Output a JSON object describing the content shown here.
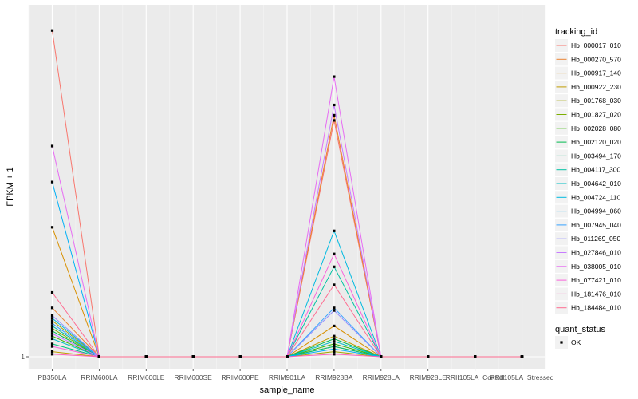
{
  "chart_data": {
    "type": "line",
    "xlabel": "sample_name",
    "ylabel": "FPKM + 1",
    "y_tick_labels": [
      "1"
    ],
    "ylim": [
      1,
      7.85
    ],
    "grid": true,
    "legend_placement": "right",
    "categories": [
      "PB350LA",
      "RRIM600LA",
      "RRIM600LE",
      "RRIM600SE",
      "RRIM600PE",
      "RRIM901LA",
      "RRIM928BA",
      "RRIM928LA",
      "RRIM928LE",
      "RRII105LA_Control",
      "RRII105LA_Stressed"
    ],
    "legend_title": "tracking_id",
    "shape_legend_title": "quant_status",
    "shape_legend_items": [
      "OK"
    ],
    "series": [
      {
        "name": "Hb_000017_010",
        "color": "#F8766D",
        "values": [
          7.35,
          1,
          1,
          1,
          1,
          1,
          5.6,
          1,
          1,
          1,
          1
        ]
      },
      {
        "name": "Hb_000270_570",
        "color": "#EA8331",
        "values": [
          1.95,
          1,
          1,
          1,
          1,
          1,
          5.7,
          1,
          1,
          1,
          1
        ]
      },
      {
        "name": "Hb_000917_140",
        "color": "#D89000",
        "values": [
          3.52,
          1,
          1,
          1,
          1,
          1,
          1.6,
          1,
          1,
          1,
          1
        ]
      },
      {
        "name": "Hb_000922_230",
        "color": "#C09B00",
        "values": [
          1.1,
          1,
          1,
          1,
          1,
          1,
          1.4,
          1,
          1,
          1,
          1
        ]
      },
      {
        "name": "Hb_001768_030",
        "color": "#A3A500",
        "values": [
          1.7,
          1,
          1,
          1,
          1,
          1,
          1.1,
          1,
          1,
          1,
          1
        ]
      },
      {
        "name": "Hb_001827_020",
        "color": "#7CAE00",
        "values": [
          1.55,
          1,
          1,
          1,
          1,
          1,
          1.2,
          1,
          1,
          1,
          1
        ]
      },
      {
        "name": "Hb_002028_080",
        "color": "#39B600",
        "values": [
          1.4,
          1,
          1,
          1,
          1,
          1,
          1.25,
          1,
          1,
          1,
          1
        ]
      },
      {
        "name": "Hb_002120_020",
        "color": "#00BB4E",
        "values": [
          1.5,
          1,
          1,
          1,
          1,
          1,
          1.35,
          1,
          1,
          1,
          1
        ]
      },
      {
        "name": "Hb_003494_170",
        "color": "#00BF7D",
        "values": [
          1.25,
          1,
          1,
          1,
          1,
          1,
          1.2,
          1,
          1,
          1,
          1
        ]
      },
      {
        "name": "Hb_004117_300",
        "color": "#00C1A3",
        "values": [
          1.6,
          1,
          1,
          1,
          1,
          1,
          2.75,
          1,
          1,
          1,
          1
        ]
      },
      {
        "name": "Hb_004642_010",
        "color": "#00BFC4",
        "values": [
          1.35,
          1,
          1,
          1,
          1,
          1,
          1.3,
          1,
          1,
          1,
          1
        ]
      },
      {
        "name": "Hb_004724_110",
        "color": "#00BAE0",
        "values": [
          1.75,
          1,
          1,
          1,
          1,
          1,
          3.45,
          1,
          1,
          1,
          1
        ]
      },
      {
        "name": "Hb_004994_060",
        "color": "#00B0F6",
        "values": [
          4.4,
          1,
          1,
          1,
          1,
          1,
          1.15,
          1,
          1,
          1,
          1
        ]
      },
      {
        "name": "Hb_007945_040",
        "color": "#35A2FF",
        "values": [
          1.65,
          1,
          1,
          1,
          1,
          1,
          1.95,
          1,
          1,
          1,
          1
        ]
      },
      {
        "name": "Hb_011269_050",
        "color": "#9590FF",
        "values": [
          1.8,
          1,
          1,
          1,
          1,
          1,
          1.9,
          1,
          1,
          1,
          1
        ]
      },
      {
        "name": "Hb_027846_010",
        "color": "#C77CFF",
        "values": [
          1.45,
          1,
          1,
          1,
          1,
          1,
          5.9,
          1,
          1,
          1,
          1
        ]
      },
      {
        "name": "Hb_038005_010",
        "color": "#E76BF3",
        "values": [
          5.1,
          1,
          1,
          1,
          1,
          1,
          6.45,
          1,
          1,
          1,
          1
        ]
      },
      {
        "name": "Hb_077421_010",
        "color": "#FA62DB",
        "values": [
          1.2,
          1,
          1,
          1,
          1,
          1,
          3.0,
          1,
          1,
          1,
          1
        ]
      },
      {
        "name": "Hb_181476_010",
        "color": "#FF62BC",
        "values": [
          1.05,
          1,
          1,
          1,
          1,
          1,
          1.05,
          1,
          1,
          1,
          1
        ]
      },
      {
        "name": "Hb_184484_010",
        "color": "#FF6C91",
        "values": [
          2.25,
          1,
          1,
          1,
          1,
          1,
          2.4,
          1,
          1,
          1,
          1
        ]
      }
    ]
  }
}
